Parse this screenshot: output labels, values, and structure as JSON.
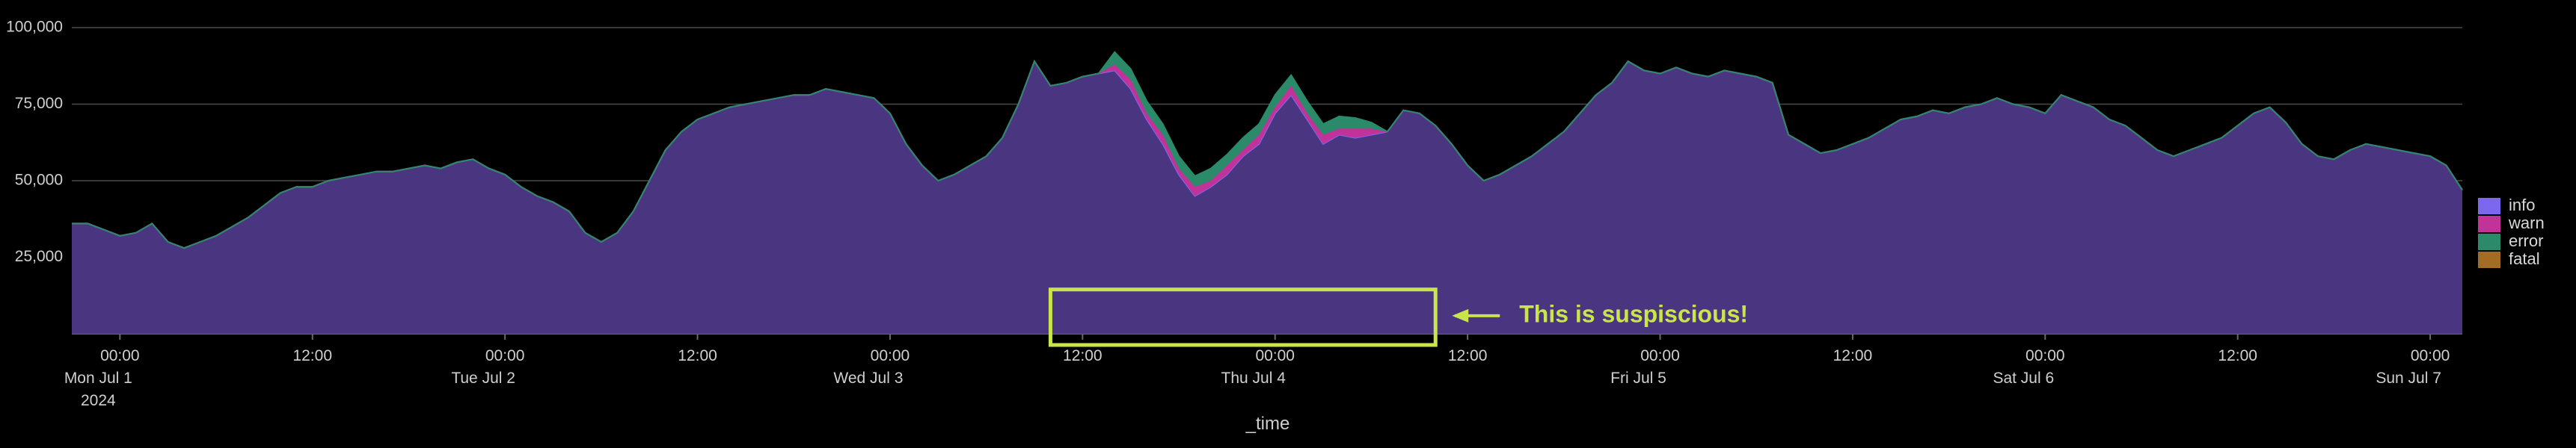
{
  "chart_data": {
    "type": "area",
    "stacked": true,
    "xlabel": "_time",
    "ylabel": "",
    "ylim": [
      0,
      100000
    ],
    "grid": true,
    "legend_placement": "right",
    "y_ticks": [
      "100,000",
      "75,000",
      "50,000",
      "25,000"
    ],
    "y_tick_values": [
      100000,
      75000,
      50000,
      25000
    ],
    "x_ticks": [
      {
        "hours": 6,
        "lines": [
          "00:00",
          "Mon Jul 1",
          "2024"
        ]
      },
      {
        "hours": 18,
        "lines": [
          "12:00"
        ]
      },
      {
        "hours": 30,
        "lines": [
          "00:00",
          "Tue Jul 2"
        ]
      },
      {
        "hours": 42,
        "lines": [
          "12:00"
        ]
      },
      {
        "hours": 54,
        "lines": [
          "00:00",
          "Wed Jul 3"
        ]
      },
      {
        "hours": 66,
        "lines": [
          "12:00"
        ]
      },
      {
        "hours": 78,
        "lines": [
          "00:00",
          "Thu Jul 4"
        ]
      },
      {
        "hours": 90,
        "lines": [
          "12:00"
        ]
      },
      {
        "hours": 102,
        "lines": [
          "00:00",
          "Fri Jul 5"
        ]
      },
      {
        "hours": 114,
        "lines": [
          "12:00"
        ]
      },
      {
        "hours": 126,
        "lines": [
          "00:00",
          "Sat Jul 6"
        ]
      },
      {
        "hours": 138,
        "lines": [
          "12:00"
        ]
      },
      {
        "hours": 150,
        "lines": [
          "00:00",
          "Sun Jul 7"
        ]
      },
      {
        "hours": 162,
        "lines": [
          "12:00"
        ]
      }
    ],
    "x_start": "Jun 30 2024 21:00",
    "x_step_hours": 1,
    "series": [
      {
        "name": "info",
        "color": "#7b68ee",
        "fill": "#4a3580",
        "values": [
          36000,
          36000,
          34000,
          32000,
          33000,
          36000,
          30000,
          28000,
          30000,
          32000,
          35000,
          38000,
          42000,
          46000,
          48000,
          48000,
          50000,
          51000,
          52000,
          53000,
          53000,
          54000,
          55000,
          54000,
          56000,
          57000,
          54000,
          52000,
          48000,
          45000,
          43000,
          40000,
          33000,
          30000,
          33000,
          40000,
          50000,
          60000,
          66000,
          70000,
          72000,
          74000,
          75000,
          76000,
          77000,
          78000,
          78000,
          80000,
          79000,
          78000,
          77000,
          72000,
          62000,
          55000,
          50000,
          52000,
          55000,
          58000,
          64000,
          75000,
          89000,
          81000,
          82000,
          84000,
          85000,
          86000,
          80000,
          70000,
          62000,
          52000,
          45000,
          48000,
          52000,
          58000,
          62000,
          72000,
          78000,
          70000,
          62000,
          65000,
          64000,
          65000,
          66000,
          73000,
          72000,
          68000,
          62000,
          55000,
          50000,
          52000,
          55000,
          58000,
          62000,
          66000,
          72000,
          78000,
          82000,
          89000,
          86000,
          85000,
          87000,
          85000,
          84000,
          86000,
          85000,
          84000,
          82000,
          65000,
          62000,
          59000,
          60000,
          62000,
          64000,
          67000,
          70000,
          71000,
          73000,
          72000,
          74000,
          75000,
          77000,
          75000,
          74000,
          72000,
          78000,
          76000,
          74000,
          70000,
          68000,
          64000,
          60000,
          58000,
          60000,
          62000,
          64000,
          68000,
          72000,
          74000,
          69000,
          62000,
          58000,
          57000,
          60000,
          62000,
          61000,
          60000,
          59000,
          58000,
          55000,
          47000
        ]
      },
      {
        "name": "warn",
        "color": "#c2339a",
        "fill": "#c2339a",
        "values": [
          0,
          0,
          0,
          0,
          0,
          0,
          0,
          0,
          0,
          0,
          0,
          0,
          0,
          0,
          0,
          0,
          0,
          0,
          0,
          0,
          0,
          0,
          0,
          0,
          0,
          0,
          0,
          0,
          0,
          0,
          0,
          0,
          0,
          0,
          0,
          0,
          0,
          0,
          0,
          0,
          0,
          0,
          0,
          0,
          0,
          0,
          0,
          0,
          0,
          0,
          0,
          0,
          0,
          0,
          0,
          0,
          0,
          0,
          0,
          0,
          0,
          0,
          0,
          0,
          0,
          2000,
          3000,
          2000,
          3000,
          2000,
          3000,
          2000,
          3000,
          2000,
          3000,
          2000,
          3000,
          2000,
          3000,
          2000,
          3000,
          2000,
          0,
          0,
          0,
          0,
          0,
          0,
          0,
          0,
          0,
          0,
          0,
          0,
          0,
          0,
          0,
          0,
          0,
          0,
          0,
          0,
          0,
          0,
          0,
          0,
          0,
          0,
          0,
          0,
          0,
          0,
          0,
          0,
          0,
          0,
          0,
          0,
          0,
          0,
          0,
          0,
          0,
          0,
          0,
          0,
          0,
          0,
          0,
          0,
          0,
          0,
          0,
          0,
          0,
          0,
          0,
          0,
          0,
          0,
          0,
          0,
          0,
          0,
          0,
          0,
          0,
          0,
          0,
          0
        ]
      },
      {
        "name": "error",
        "color": "#2a8a6a",
        "fill": "#2a8a6a",
        "values": [
          0,
          0,
          0,
          0,
          0,
          0,
          0,
          0,
          0,
          0,
          0,
          0,
          0,
          0,
          0,
          0,
          0,
          0,
          0,
          0,
          0,
          0,
          0,
          0,
          0,
          0,
          0,
          0,
          0,
          0,
          0,
          0,
          0,
          0,
          0,
          0,
          0,
          0,
          0,
          0,
          0,
          0,
          0,
          0,
          0,
          0,
          0,
          0,
          0,
          0,
          0,
          0,
          0,
          0,
          0,
          0,
          0,
          0,
          0,
          0,
          0,
          0,
          0,
          0,
          0,
          4000,
          3500,
          4000,
          3500,
          4000,
          3500,
          4000,
          3500,
          4000,
          3500,
          4000,
          3500,
          4000,
          3500,
          4000,
          3500,
          2000,
          0,
          0,
          0,
          0,
          0,
          0,
          0,
          0,
          0,
          0,
          0,
          0,
          0,
          0,
          0,
          0,
          0,
          0,
          0,
          0,
          0,
          0,
          0,
          0,
          0,
          0,
          0,
          0,
          0,
          0,
          0,
          0,
          0,
          0,
          0,
          0,
          0,
          0,
          0,
          0,
          0,
          0,
          0,
          0,
          0,
          0,
          0,
          0,
          0,
          0,
          0,
          0,
          0,
          0,
          0,
          0,
          0,
          0,
          0,
          0,
          0,
          0,
          0,
          0,
          0,
          0,
          0,
          0
        ]
      },
      {
        "name": "fatal",
        "color": "#a26c24",
        "fill": "#a26c24",
        "values": [
          0,
          0,
          0,
          0,
          0,
          0,
          0,
          0,
          0,
          0,
          0,
          0,
          0,
          0,
          0,
          0,
          0,
          0,
          0,
          0,
          0,
          0,
          0,
          0,
          0,
          0,
          0,
          0,
          0,
          0,
          0,
          0,
          0,
          0,
          0,
          0,
          0,
          0,
          0,
          0,
          0,
          0,
          0,
          0,
          0,
          0,
          0,
          0,
          0,
          0,
          0,
          0,
          0,
          0,
          0,
          0,
          0,
          0,
          0,
          0,
          0,
          0,
          0,
          0,
          0,
          0,
          0,
          0,
          0,
          0,
          0,
          0,
          0,
          0,
          0,
          0,
          0,
          0,
          0,
          0,
          0,
          0,
          0,
          0,
          0,
          0,
          0,
          0,
          0,
          0,
          0,
          0,
          0,
          0,
          0,
          0,
          0,
          0,
          0,
          0,
          0,
          0,
          0,
          0,
          0,
          0,
          0,
          0,
          0,
          0,
          0,
          0,
          0,
          0,
          0,
          0,
          0,
          0,
          0,
          0,
          0,
          0,
          0,
          0,
          0,
          0,
          0,
          0,
          0,
          0,
          0,
          0,
          0,
          0,
          0,
          0,
          0,
          0,
          0,
          0,
          0,
          0,
          0,
          0,
          0,
          0,
          0,
          0,
          0,
          0,
          0,
          0
        ]
      }
    ],
    "annotation": {
      "text": "This is suspiscious!",
      "box_from_hours": 64,
      "box_to_hours": 88,
      "box_y_range": [
        0,
        13000
      ],
      "color": "#c9e54b"
    }
  }
}
